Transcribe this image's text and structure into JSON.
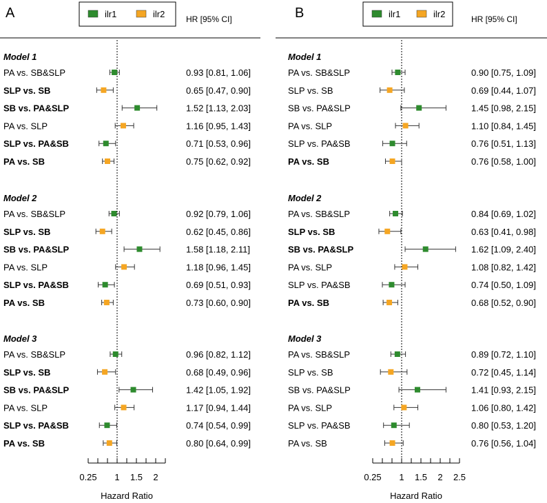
{
  "chart_data": [
    {
      "type": "forest",
      "panel": "A",
      "legend": [
        "ilr1",
        "ilr2"
      ],
      "legend_placement": "top-center",
      "hr_header": "HR [95% CI]",
      "xlabel": "Hazard Ratio",
      "xlim": [
        0.25,
        2.25
      ],
      "tick_values": [
        0.25,
        0.5,
        0.75,
        1,
        1.25,
        1.5,
        1.75,
        2,
        2.25
      ],
      "tick_labels": {
        "0.25": "0.25",
        "1": "1",
        "1.5": "1.5",
        "2": "2"
      },
      "reference_line": 1,
      "models": [
        {
          "title": "Model 1",
          "rows": [
            {
              "label": "PA vs. SB&SLP",
              "bold": false,
              "series": "ilr1",
              "hr": 0.93,
              "lo": 0.81,
              "hi": 1.06,
              "text": "0.93 [0.81, 1.06]"
            },
            {
              "label": "SLP vs. SB",
              "bold": true,
              "series": "ilr2",
              "hr": 0.65,
              "lo": 0.47,
              "hi": 0.9,
              "text": "0.65 [0.47, 0.90]"
            },
            {
              "label": "SB vs. PA&SLP",
              "bold": true,
              "series": "ilr1",
              "hr": 1.52,
              "lo": 1.13,
              "hi": 2.03,
              "text": "1.52 [1.13, 2.03]"
            },
            {
              "label": "PA vs. SLP",
              "bold": false,
              "series": "ilr2",
              "hr": 1.16,
              "lo": 0.95,
              "hi": 1.43,
              "text": "1.16 [0.95, 1.43]"
            },
            {
              "label": "SLP vs. PA&SB",
              "bold": true,
              "series": "ilr1",
              "hr": 0.71,
              "lo": 0.53,
              "hi": 0.96,
              "text": "0.71 [0.53, 0.96]"
            },
            {
              "label": "PA vs. SB",
              "bold": true,
              "series": "ilr2",
              "hr": 0.75,
              "lo": 0.62,
              "hi": 0.92,
              "text": "0.75 [0.62, 0.92]"
            }
          ]
        },
        {
          "title": "Model 2",
          "rows": [
            {
              "label": "PA vs. SB&SLP",
              "bold": false,
              "series": "ilr1",
              "hr": 0.92,
              "lo": 0.79,
              "hi": 1.06,
              "text": "0.92 [0.79, 1.06]"
            },
            {
              "label": "SLP vs. SB",
              "bold": true,
              "series": "ilr2",
              "hr": 0.62,
              "lo": 0.45,
              "hi": 0.86,
              "text": "0.62 [0.45, 0.86]"
            },
            {
              "label": "SB vs. PA&SLP",
              "bold": true,
              "series": "ilr1",
              "hr": 1.58,
              "lo": 1.18,
              "hi": 2.11,
              "text": "1.58 [1.18, 2.11]"
            },
            {
              "label": "PA vs. SLP",
              "bold": false,
              "series": "ilr2",
              "hr": 1.18,
              "lo": 0.96,
              "hi": 1.45,
              "text": "1.18 [0.96, 1.45]"
            },
            {
              "label": "SLP vs. PA&SB",
              "bold": true,
              "series": "ilr1",
              "hr": 0.69,
              "lo": 0.51,
              "hi": 0.93,
              "text": "0.69 [0.51, 0.93]"
            },
            {
              "label": "PA vs. SB",
              "bold": true,
              "series": "ilr2",
              "hr": 0.73,
              "lo": 0.6,
              "hi": 0.9,
              "text": "0.73 [0.60, 0.90]"
            }
          ]
        },
        {
          "title": "Model 3",
          "rows": [
            {
              "label": "PA vs. SB&SLP",
              "bold": false,
              "series": "ilr1",
              "hr": 0.96,
              "lo": 0.82,
              "hi": 1.12,
              "text": "0.96 [0.82, 1.12]"
            },
            {
              "label": "SLP vs. SB",
              "bold": true,
              "series": "ilr2",
              "hr": 0.68,
              "lo": 0.49,
              "hi": 0.96,
              "text": "0.68 [0.49, 0.96]"
            },
            {
              "label": "SB vs. PA&SLP",
              "bold": true,
              "series": "ilr1",
              "hr": 1.42,
              "lo": 1.05,
              "hi": 1.92,
              "text": "1.42 [1.05, 1.92]"
            },
            {
              "label": "PA vs. SLP",
              "bold": false,
              "series": "ilr2",
              "hr": 1.17,
              "lo": 0.94,
              "hi": 1.44,
              "text": "1.17 [0.94, 1.44]"
            },
            {
              "label": "SLP vs. PA&SB",
              "bold": true,
              "series": "ilr1",
              "hr": 0.74,
              "lo": 0.54,
              "hi": 0.99,
              "text": "0.74 [0.54, 0.99]"
            },
            {
              "label": "PA vs. SB",
              "bold": true,
              "series": "ilr2",
              "hr": 0.8,
              "lo": 0.64,
              "hi": 0.99,
              "text": "0.80 [0.64, 0.99]"
            }
          ]
        }
      ]
    },
    {
      "type": "forest",
      "panel": "B",
      "legend": [
        "ilr1",
        "ilr2"
      ],
      "legend_placement": "top-center",
      "hr_header": "HR [95% CI]",
      "xlabel": "Hazard Ratio",
      "xlim": [
        0.25,
        2.5
      ],
      "tick_values": [
        0.25,
        0.5,
        0.75,
        1,
        1.25,
        1.5,
        1.75,
        2,
        2.25,
        2.5
      ],
      "tick_labels": {
        "0.25": "0.25",
        "1": "1",
        "1.5": "1.5",
        "2": "2",
        "2.5": "2.5"
      },
      "reference_line": 1,
      "models": [
        {
          "title": "Model 1",
          "rows": [
            {
              "label": "PA vs. SB&SLP",
              "bold": false,
              "series": "ilr1",
              "hr": 0.9,
              "lo": 0.75,
              "hi": 1.09,
              "text": "0.90 [0.75, 1.09]"
            },
            {
              "label": "SLP vs. SB",
              "bold": false,
              "series": "ilr2",
              "hr": 0.69,
              "lo": 0.44,
              "hi": 1.07,
              "text": "0.69 [0.44, 1.07]"
            },
            {
              "label": "SB vs. PA&SLP",
              "bold": false,
              "series": "ilr1",
              "hr": 1.45,
              "lo": 0.98,
              "hi": 2.15,
              "text": "1.45 [0.98, 2.15]"
            },
            {
              "label": "PA vs. SLP",
              "bold": false,
              "series": "ilr2",
              "hr": 1.1,
              "lo": 0.84,
              "hi": 1.45,
              "text": "1.10 [0.84, 1.45]"
            },
            {
              "label": "SLP vs. PA&SB",
              "bold": false,
              "series": "ilr1",
              "hr": 0.76,
              "lo": 0.51,
              "hi": 1.13,
              "text": "0.76 [0.51, 1.13]"
            },
            {
              "label": "PA vs. SB",
              "bold": true,
              "series": "ilr2",
              "hr": 0.76,
              "lo": 0.58,
              "hi": 1.0,
              "text": "0.76 [0.58, 1.00]"
            }
          ]
        },
        {
          "title": "Model 2",
          "rows": [
            {
              "label": "PA vs. SB&SLP",
              "bold": false,
              "series": "ilr1",
              "hr": 0.84,
              "lo": 0.69,
              "hi": 1.02,
              "text": "0.84 [0.69, 1.02]"
            },
            {
              "label": "SLP vs. SB",
              "bold": true,
              "series": "ilr2",
              "hr": 0.63,
              "lo": 0.41,
              "hi": 0.98,
              "text": "0.63 [0.41, 0.98]"
            },
            {
              "label": "SB vs. PA&SLP",
              "bold": true,
              "series": "ilr1",
              "hr": 1.62,
              "lo": 1.09,
              "hi": 2.4,
              "text": "1.62 [1.09, 2.40]"
            },
            {
              "label": "PA vs. SLP",
              "bold": false,
              "series": "ilr2",
              "hr": 1.08,
              "lo": 0.82,
              "hi": 1.42,
              "text": "1.08 [0.82, 1.42]"
            },
            {
              "label": "SLP vs. PA&SB",
              "bold": false,
              "series": "ilr1",
              "hr": 0.74,
              "lo": 0.5,
              "hi": 1.09,
              "text": "0.74 [0.50, 1.09]"
            },
            {
              "label": "PA vs. SB",
              "bold": true,
              "series": "ilr2",
              "hr": 0.68,
              "lo": 0.52,
              "hi": 0.9,
              "text": "0.68 [0.52, 0.90]"
            }
          ]
        },
        {
          "title": "Model 3",
          "rows": [
            {
              "label": "PA vs. SB&SLP",
              "bold": false,
              "series": "ilr1",
              "hr": 0.89,
              "lo": 0.72,
              "hi": 1.1,
              "text": "0.89 [0.72, 1.10]"
            },
            {
              "label": "SLP vs. SB",
              "bold": false,
              "series": "ilr2",
              "hr": 0.72,
              "lo": 0.45,
              "hi": 1.14,
              "text": "0.72 [0.45, 1.14]"
            },
            {
              "label": "SB vs. PA&SLP",
              "bold": false,
              "series": "ilr1",
              "hr": 1.41,
              "lo": 0.93,
              "hi": 2.15,
              "text": "1.41 [0.93, 2.15]"
            },
            {
              "label": "PA vs. SLP",
              "bold": false,
              "series": "ilr2",
              "hr": 1.06,
              "lo": 0.8,
              "hi": 1.42,
              "text": "1.06 [0.80, 1.42]"
            },
            {
              "label": "SLP vs. PA&SB",
              "bold": false,
              "series": "ilr1",
              "hr": 0.8,
              "lo": 0.53,
              "hi": 1.2,
              "text": "0.80 [0.53, 1.20]"
            },
            {
              "label": "PA vs. SB",
              "bold": false,
              "series": "ilr2",
              "hr": 0.76,
              "lo": 0.56,
              "hi": 1.04,
              "text": "0.76 [0.56, 1.04]"
            }
          ]
        }
      ]
    }
  ],
  "colors": {
    "ilr1": "#2e8b2e",
    "ilr2": "#f5a623"
  }
}
